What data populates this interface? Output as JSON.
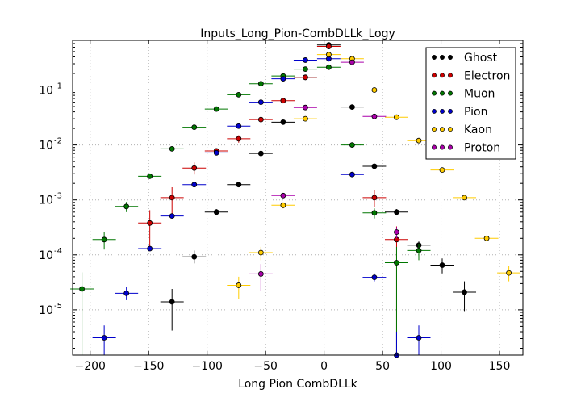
{
  "chart_data": {
    "type": "scatter",
    "title": "Inputs_Long_Pion-CombDLLk_Logy",
    "xlabel": "Long Pion CombDLLk",
    "ylabel": "",
    "xlim": [
      -215,
      170
    ],
    "ylim": [
      1.5e-06,
      0.8
    ],
    "log_y": true,
    "grid": true,
    "legend_position": "top-right",
    "x_ticks": [
      -200,
      -150,
      -100,
      -50,
      0,
      50,
      100,
      150
    ],
    "x_tick_labels": [
      "−200",
      "−150",
      "−100",
      "−50",
      "0",
      "50",
      "100",
      "150"
    ],
    "y_ticks": [
      1e-05,
      0.0001,
      0.001,
      0.01,
      0.1
    ],
    "y_tick_labels": [
      {
        "base": "10",
        "exp": "-5"
      },
      {
        "base": "10",
        "exp": "-4"
      },
      {
        "base": "10",
        "exp": "-3"
      },
      {
        "base": "10",
        "exp": "-2"
      },
      {
        "base": "10",
        "exp": "-1"
      }
    ],
    "x_half_width": 10,
    "series": [
      {
        "name": "Ghost",
        "color": "#000000",
        "points": [
          {
            "x": -130,
            "y": 1.4e-05,
            "lo": 4.2e-06,
            "hi": 2.4e-05
          },
          {
            "x": -111,
            "y": 9.2e-05,
            "lo": 7e-05,
            "hi": 0.00012
          },
          {
            "x": -92,
            "y": 0.0006,
            "lo": 0.00052,
            "hi": 0.00068
          },
          {
            "x": -73,
            "y": 0.0019
          },
          {
            "x": -54,
            "y": 0.007
          },
          {
            "x": -35,
            "y": 0.026
          },
          {
            "x": -16,
            "y": 0.17
          },
          {
            "x": 4,
            "y": 0.66
          },
          {
            "x": 24,
            "y": 0.049
          },
          {
            "x": 43,
            "y": 0.0041
          },
          {
            "x": 62,
            "y": 0.0006,
            "lo": 0.00052,
            "hi": 0.00068
          },
          {
            "x": 81,
            "y": 0.00015,
            "lo": 0.00013,
            "hi": 0.000175
          },
          {
            "x": 101,
            "y": 6.5e-05,
            "lo": 4.6e-05,
            "hi": 8.6e-05
          },
          {
            "x": 120,
            "y": 2.1e-05,
            "lo": 9.5e-06,
            "hi": 3.3e-05
          }
        ]
      },
      {
        "name": "Electron",
        "color": "#cc0000",
        "points": [
          {
            "x": -149,
            "y": 0.00038,
            "lo": 0.00013,
            "hi": 0.00065
          },
          {
            "x": -130,
            "y": 0.0011,
            "lo": 0.00055,
            "hi": 0.0017
          },
          {
            "x": -111,
            "y": 0.0038,
            "lo": 0.0029,
            "hi": 0.0048
          },
          {
            "x": -92,
            "y": 0.0078
          },
          {
            "x": -73,
            "y": 0.013,
            "lo": 0.011,
            "hi": 0.015
          },
          {
            "x": -54,
            "y": 0.029
          },
          {
            "x": -35,
            "y": 0.064
          },
          {
            "x": -16,
            "y": 0.17
          },
          {
            "x": 4,
            "y": 0.62
          },
          {
            "x": 43,
            "y": 0.0011,
            "lo": 0.00075,
            "hi": 0.0015
          },
          {
            "x": 62,
            "y": 0.00019,
            "lo": 1.5e-06,
            "hi": 0.00033
          }
        ]
      },
      {
        "name": "Muon",
        "color": "#007700",
        "points": [
          {
            "x": -207,
            "y": 2.4e-05,
            "lo": 1.5e-06,
            "hi": 4.8e-05
          },
          {
            "x": -188,
            "y": 0.00019,
            "lo": 0.000125,
            "hi": 0.00026
          },
          {
            "x": -169,
            "y": 0.00076,
            "lo": 0.0006,
            "hi": 0.00092
          },
          {
            "x": -149,
            "y": 0.0027
          },
          {
            "x": -130,
            "y": 0.0085
          },
          {
            "x": -111,
            "y": 0.021
          },
          {
            "x": -92,
            "y": 0.045
          },
          {
            "x": -73,
            "y": 0.082
          },
          {
            "x": -54,
            "y": 0.13
          },
          {
            "x": -35,
            "y": 0.18
          },
          {
            "x": -16,
            "y": 0.24
          },
          {
            "x": 4,
            "y": 0.26
          },
          {
            "x": 24,
            "y": 0.01
          },
          {
            "x": 43,
            "y": 0.00058,
            "lo": 0.00046,
            "hi": 0.0007
          },
          {
            "x": 62,
            "y": 7.2e-05,
            "lo": 1.5e-06,
            "hi": 0.00014
          },
          {
            "x": 81,
            "y": 0.00012,
            "lo": 8e-05,
            "hi": 0.00016
          }
        ]
      },
      {
        "name": "Pion",
        "color": "#0000cc",
        "points": [
          {
            "x": -188,
            "y": 3.1e-06,
            "lo": 1.5e-06,
            "hi": 5.2e-06
          },
          {
            "x": -169,
            "y": 2e-05,
            "lo": 1.5e-05,
            "hi": 2.6e-05
          },
          {
            "x": -149,
            "y": 0.00013,
            "lo": 0.00012,
            "hi": 0.000142
          },
          {
            "x": -130,
            "y": 0.00051
          },
          {
            "x": -111,
            "y": 0.0019
          },
          {
            "x": -92,
            "y": 0.0072
          },
          {
            "x": -73,
            "y": 0.022
          },
          {
            "x": -54,
            "y": 0.06
          },
          {
            "x": -35,
            "y": 0.16
          },
          {
            "x": -16,
            "y": 0.35
          },
          {
            "x": 4,
            "y": 0.37
          },
          {
            "x": 24,
            "y": 0.0029
          },
          {
            "x": 43,
            "y": 3.9e-05,
            "lo": 3.3e-05,
            "hi": 4.6e-05
          },
          {
            "x": 62,
            "y": 1.5e-06,
            "lo": 1.5e-06,
            "hi": 4e-06
          },
          {
            "x": 81,
            "y": 3.1e-06,
            "lo": 1.5e-06,
            "hi": 5.2e-06
          }
        ]
      },
      {
        "name": "Kaon",
        "color": "#ffcc00",
        "points": [
          {
            "x": -73,
            "y": 2.8e-05,
            "lo": 1.6e-05,
            "hi": 4e-05
          },
          {
            "x": -54,
            "y": 0.00011,
            "lo": 8e-05,
            "hi": 0.00014
          },
          {
            "x": -35,
            "y": 0.0008,
            "lo": 0.0007,
            "hi": 0.0009
          },
          {
            "x": -16,
            "y": 0.03
          },
          {
            "x": 4,
            "y": 0.44
          },
          {
            "x": 24,
            "y": 0.37
          },
          {
            "x": 43,
            "y": 0.1
          },
          {
            "x": 62,
            "y": 0.032
          },
          {
            "x": 81,
            "y": 0.012
          },
          {
            "x": 101,
            "y": 0.0035
          },
          {
            "x": 120,
            "y": 0.0011
          },
          {
            "x": 139,
            "y": 0.0002,
            "lo": 0.00018,
            "hi": 0.00022
          },
          {
            "x": 158,
            "y": 4.7e-05,
            "lo": 3.3e-05,
            "hi": 6.4e-05
          }
        ]
      },
      {
        "name": "Proton",
        "color": "#aa00aa",
        "points": [
          {
            "x": -54,
            "y": 4.5e-05,
            "lo": 2.2e-05,
            "hi": 6.8e-05
          },
          {
            "x": -35,
            "y": 0.0012
          },
          {
            "x": -16,
            "y": 0.048
          },
          {
            "x": 24,
            "y": 0.32
          },
          {
            "x": 43,
            "y": 0.033
          },
          {
            "x": 62,
            "y": 0.00026,
            "lo": 0.0002,
            "hi": 0.00032
          }
        ]
      }
    ]
  }
}
